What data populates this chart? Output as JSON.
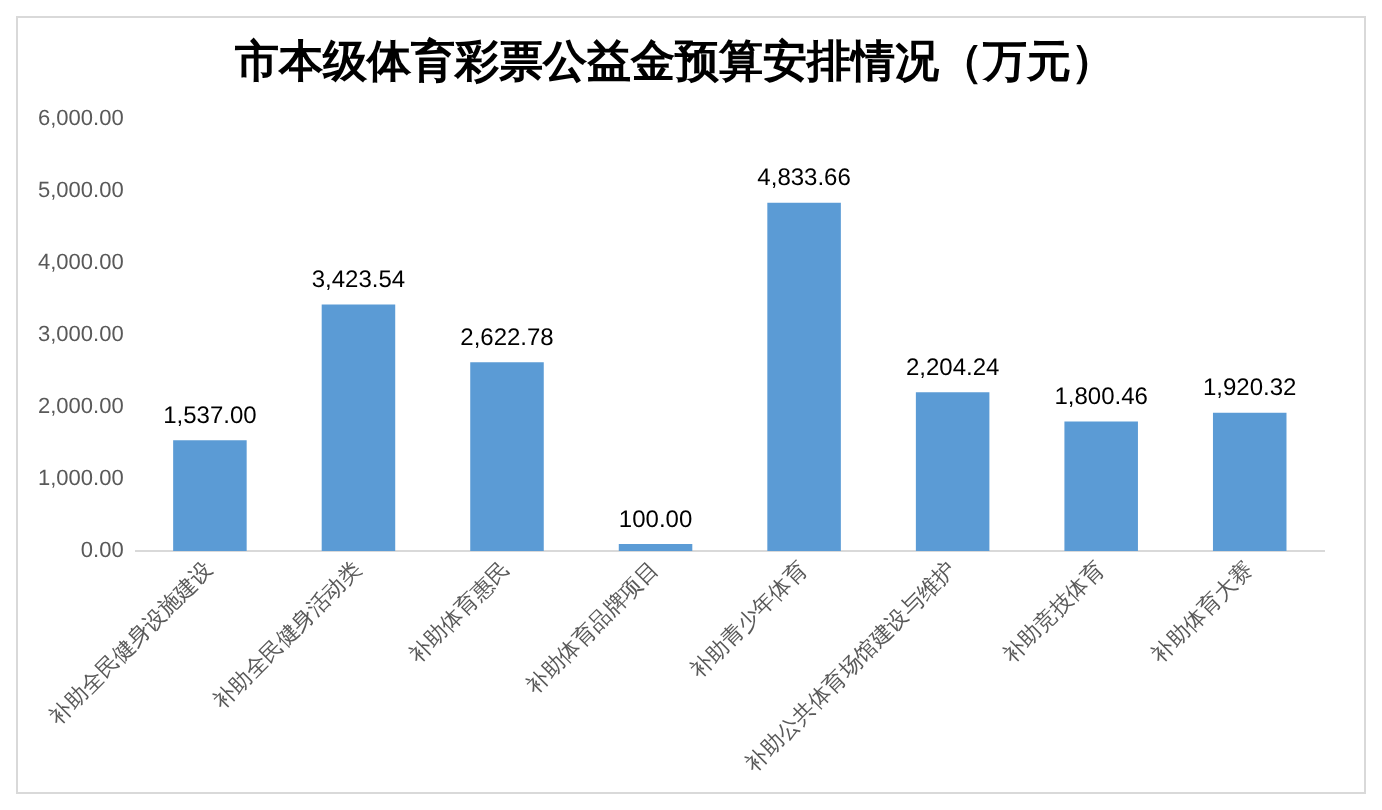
{
  "chart_data": {
    "type": "bar",
    "title": "市本级体育彩票公益金预算安排情况（万元）",
    "categories": [
      "补助全民健身设施建设",
      "补助全民健身活动类",
      "补助体育惠民",
      "补助体育品牌项目",
      "补助青少年体育",
      "补助公共体育场馆建设与维护",
      "补助竞技体育",
      "补助体育大赛"
    ],
    "values": [
      1537.0,
      3423.54,
      2622.78,
      100.0,
      4833.66,
      2204.24,
      1800.46,
      1920.32
    ],
    "color": "#5b9bd5",
    "ylim": [
      0,
      6000
    ],
    "yticks": [
      {
        "value": 0,
        "label": "0.00"
      },
      {
        "value": 1000,
        "label": "1,000.00"
      },
      {
        "value": 2000,
        "label": "2,000.00"
      },
      {
        "value": 3000,
        "label": "3,000.00"
      },
      {
        "value": 4000,
        "label": "4,000.00"
      },
      {
        "value": 5000,
        "label": "5,000.00"
      },
      {
        "value": 6000,
        "label": "6,000.00"
      }
    ],
    "value_labels": [
      "1,537.00",
      "3,423.54",
      "2,622.78",
      "100.00",
      "4,833.66",
      "2,204.24",
      "1,800.46",
      "1,920.32"
    ],
    "grid": false,
    "legend": false
  }
}
